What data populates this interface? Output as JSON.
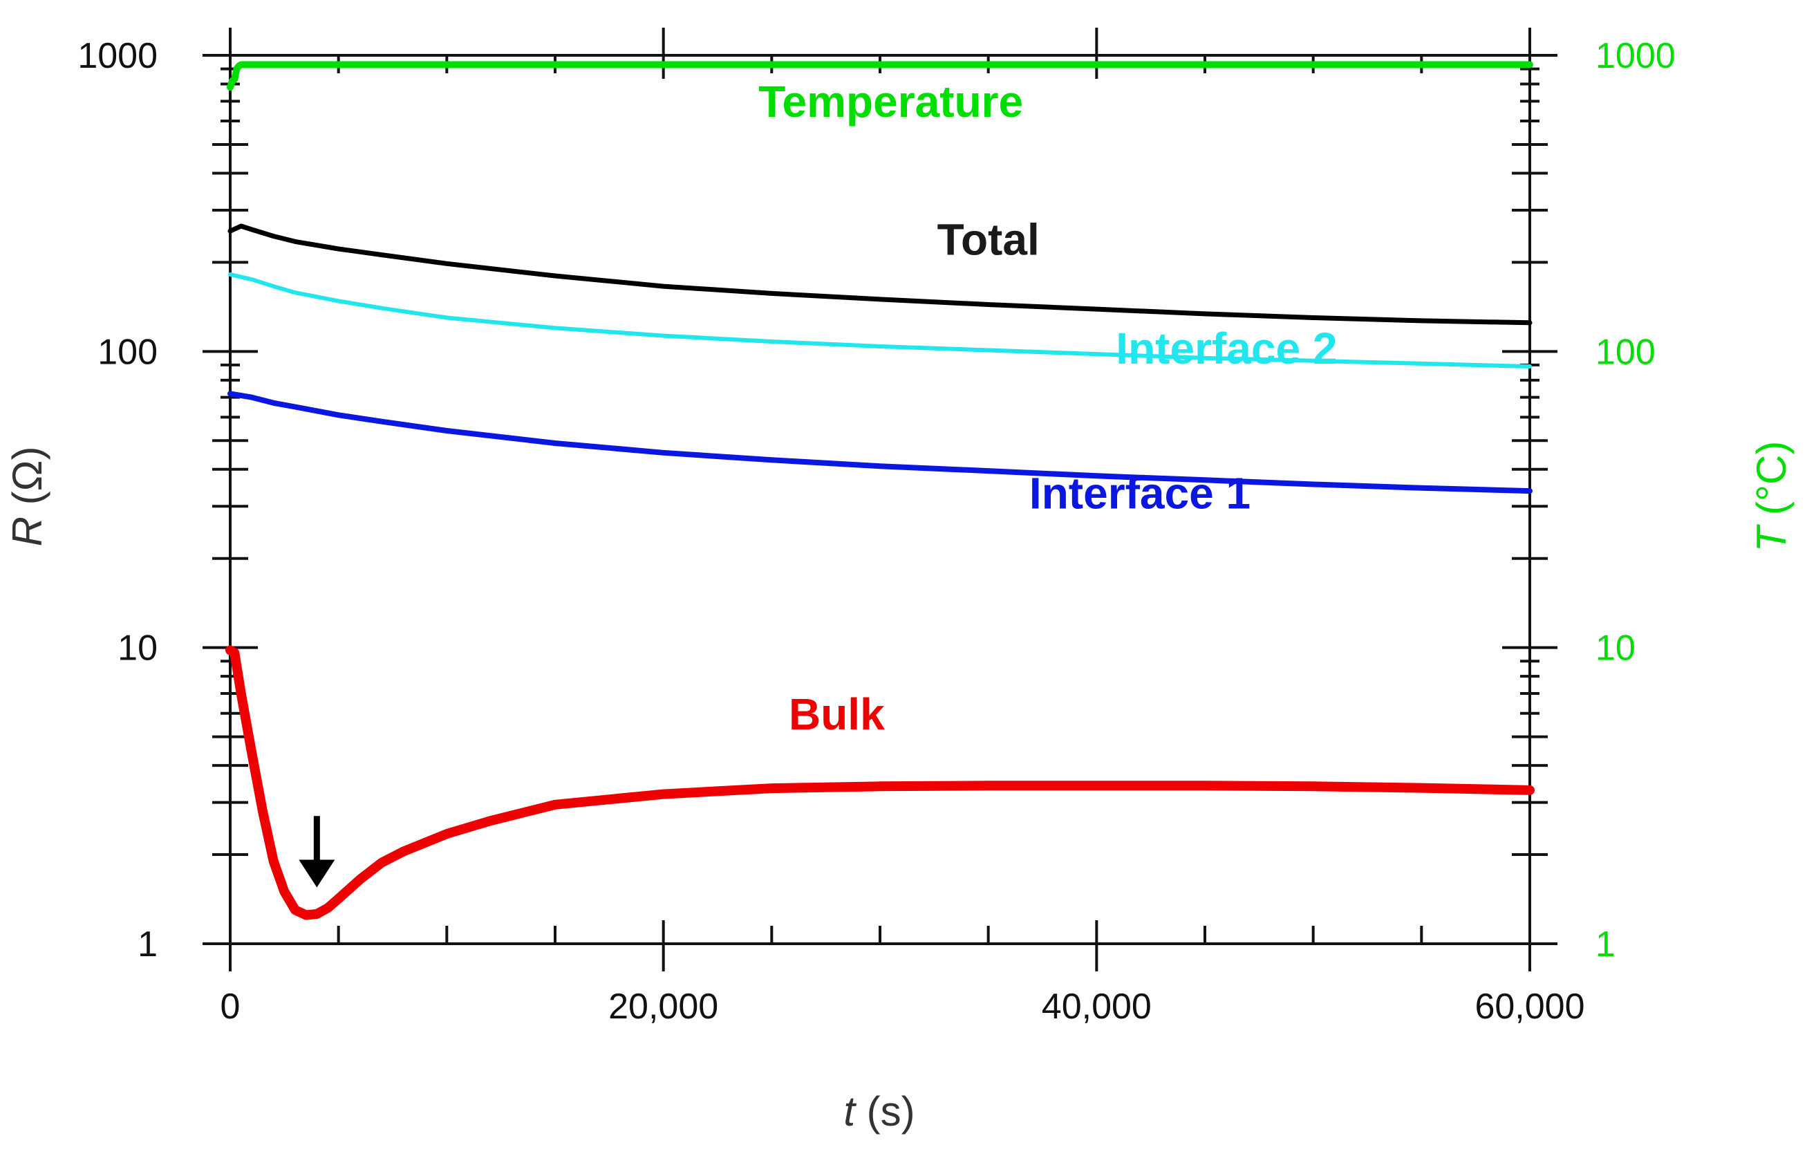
{
  "chart_data": {
    "type": "line",
    "xlabel": {
      "var": "t",
      "unit": " (s)"
    },
    "ylabel_left": {
      "var": "R",
      "unit": " (Ω)"
    },
    "ylabel_right": {
      "var": "T",
      "unit": " (°C)"
    },
    "xlim": [
      0,
      60000
    ],
    "ylim_left": [
      1,
      1000
    ],
    "ylim_right": [
      1,
      1000
    ],
    "yscale": "log",
    "x_ticks": [
      0,
      20000,
      40000,
      60000
    ],
    "x_tick_labels": [
      "0",
      "20,000",
      "40,000",
      "60,000"
    ],
    "y_ticks": [
      1,
      10,
      100,
      1000
    ],
    "y_tick_labels_left": [
      "1",
      "10",
      "100",
      "1000"
    ],
    "y_tick_labels_right": [
      "1",
      "10",
      "100",
      "1000"
    ],
    "series": [
      {
        "name": "Temperature",
        "color": "#00dd00",
        "axis": "right",
        "x": [
          0,
          100,
          200,
          300,
          400,
          500,
          1000,
          5000,
          20000,
          40000,
          60000
        ],
        "y": [
          780,
          820,
          830,
          900,
          920,
          930,
          930,
          930,
          930,
          930,
          930
        ]
      },
      {
        "name": "Total",
        "color": "#000000",
        "axis": "left",
        "x": [
          0,
          500,
          1000,
          2000,
          3000,
          5000,
          7000,
          10000,
          15000,
          20000,
          25000,
          30000,
          35000,
          40000,
          45000,
          50000,
          55000,
          60000
        ],
        "y": [
          255,
          265,
          258,
          245,
          235,
          222,
          212,
          198,
          180,
          166,
          157,
          150,
          144,
          139,
          134,
          130,
          127,
          125
        ]
      },
      {
        "name": "Interface 2",
        "color": "#22e6ee",
        "axis": "left",
        "x": [
          0,
          1000,
          2000,
          3000,
          5000,
          7000,
          10000,
          15000,
          20000,
          25000,
          30000,
          35000,
          40000,
          45000,
          50000,
          55000,
          60000
        ],
        "y": [
          182,
          175,
          166,
          158,
          148,
          140,
          130,
          120,
          113,
          108,
          104,
          101,
          98,
          95,
          93,
          91,
          89
        ]
      },
      {
        "name": "Interface 1",
        "color": "#0a17e0",
        "axis": "left",
        "x": [
          0,
          1000,
          2000,
          3000,
          5000,
          7000,
          10000,
          15000,
          20000,
          25000,
          30000,
          35000,
          40000,
          45000,
          50000,
          55000,
          60000
        ],
        "y": [
          72,
          70,
          67,
          65,
          61,
          58,
          54,
          49,
          45.5,
          43,
          41,
          39.5,
          38,
          36.8,
          35.6,
          34.6,
          33.8
        ]
      },
      {
        "name": "Bulk",
        "color": "#ee0000",
        "axis": "left",
        "x": [
          0,
          200,
          500,
          1000,
          1500,
          2000,
          2500,
          3000,
          3500,
          4000,
          4500,
          5000,
          6000,
          7000,
          8000,
          10000,
          12000,
          15000,
          20000,
          25000,
          30000,
          35000,
          40000,
          45000,
          50000,
          55000,
          60000
        ],
        "y": [
          9.8,
          9.6,
          7.0,
          4.4,
          2.8,
          1.9,
          1.5,
          1.3,
          1.25,
          1.26,
          1.32,
          1.42,
          1.65,
          1.88,
          2.05,
          2.35,
          2.6,
          2.95,
          3.2,
          3.35,
          3.4,
          3.42,
          3.42,
          3.42,
          3.4,
          3.36,
          3.3
        ]
      }
    ],
    "series_labels": [
      {
        "text": "Temperature",
        "color": "#00dd00",
        "x": 30500,
        "y": 620
      },
      {
        "text": "Total",
        "color": "#1a1a1a",
        "x": 35000,
        "y": 212
      },
      {
        "text": "Interface 2",
        "color": "#22e6ee",
        "x": 46000,
        "y": 91
      },
      {
        "text": "Interface 1",
        "color": "#0a17e0",
        "x": 42000,
        "y": 29.5
      },
      {
        "text": "Bulk",
        "color": "#ee0000",
        "x": 28000,
        "y": 5.3
      }
    ],
    "annotations": [
      {
        "type": "arrow",
        "direction": "down",
        "x": 4000,
        "y_from": 2.7,
        "y_to": 1.55,
        "color": "#000000"
      }
    ]
  }
}
